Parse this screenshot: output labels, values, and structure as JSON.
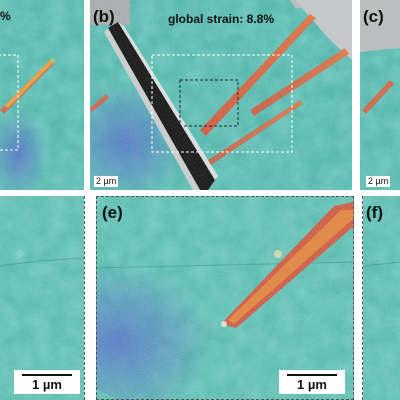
{
  "figure": {
    "panels": [
      {
        "id": "a",
        "label": "",
        "strain": "%"
      },
      {
        "id": "b",
        "label": "(b)",
        "strain": "global strain: 8.8%",
        "scale": "2 µm"
      },
      {
        "id": "c",
        "label": "(c)",
        "scale": "2 µm"
      },
      {
        "id": "d",
        "label": "",
        "scale": "1 µm"
      },
      {
        "id": "e",
        "label": "(e)",
        "scale": "1 µm"
      },
      {
        "id": "f",
        "label": "(f)"
      }
    ]
  }
}
